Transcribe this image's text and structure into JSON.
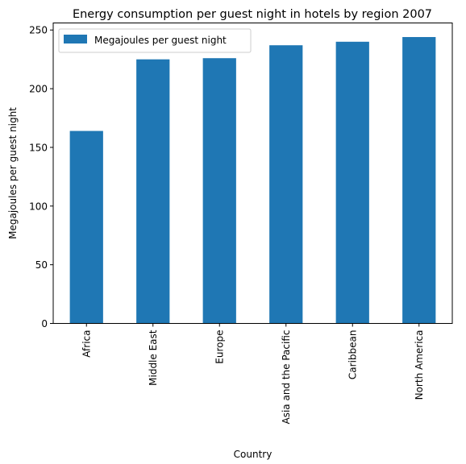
{
  "chart_data": {
    "type": "bar",
    "title": "Energy consumption per guest night in hotels by region 2007",
    "xlabel": "Country",
    "ylabel": "Megajoules per guest night",
    "categories": [
      "Africa",
      "Middle East",
      "Europe",
      "Asia and the Pacific",
      "Caribbean",
      "North America"
    ],
    "series": [
      {
        "name": "Megajoules per guest night",
        "values": [
          164,
          225,
          226,
          237,
          240,
          244
        ],
        "color": "#1f77b4"
      }
    ],
    "ylim": [
      0,
      256
    ],
    "yticks": [
      0,
      50,
      100,
      150,
      200,
      250
    ],
    "grid": false,
    "legend": "top-left"
  }
}
